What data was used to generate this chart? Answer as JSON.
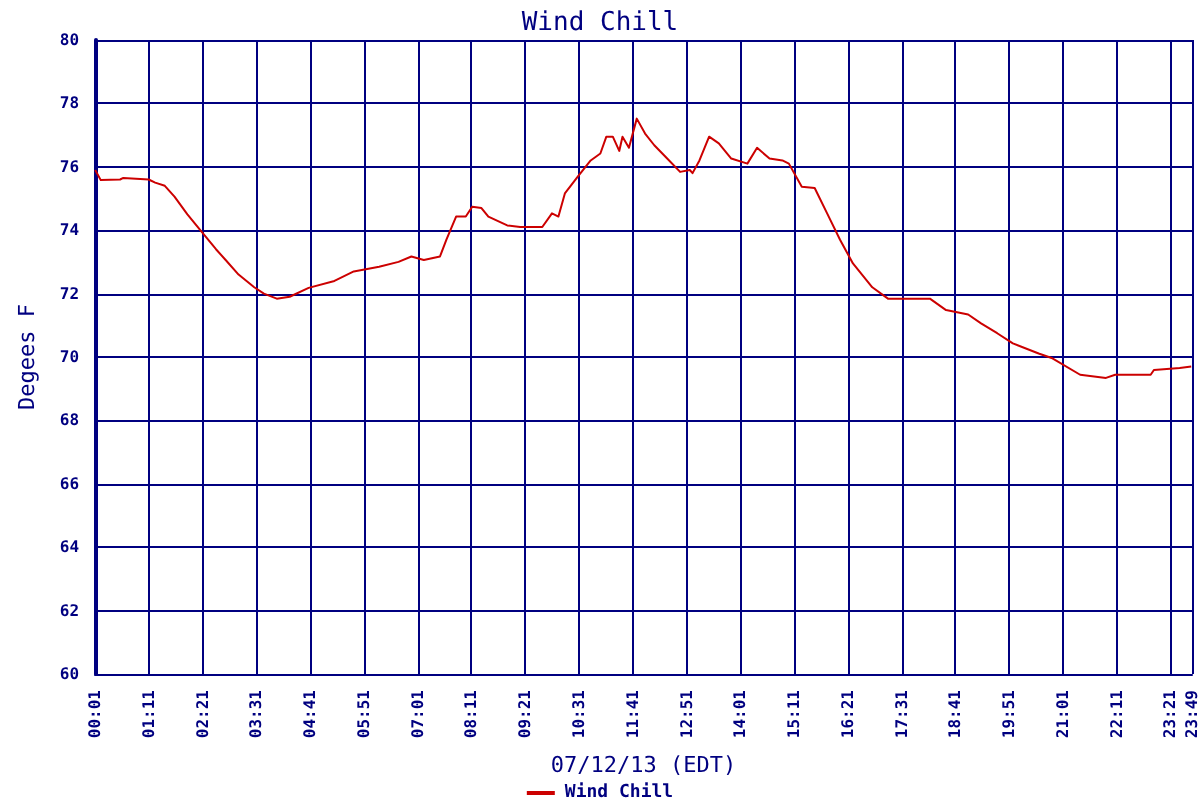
{
  "chart_data": {
    "type": "line",
    "title": "Wind Chill",
    "xlabel": "07/12/13 (EDT)",
    "ylabel": "Degees F",
    "xlim": [
      0.0167,
      23.8167
    ],
    "ylim": [
      60,
      80
    ],
    "xticks": [
      {
        "value": 0.0167,
        "label": "00:01"
      },
      {
        "value": 1.1833,
        "label": "01:11"
      },
      {
        "value": 2.35,
        "label": "02:21"
      },
      {
        "value": 3.5167,
        "label": "03:31"
      },
      {
        "value": 4.6833,
        "label": "04:41"
      },
      {
        "value": 5.85,
        "label": "05:51"
      },
      {
        "value": 7.0167,
        "label": "07:01"
      },
      {
        "value": 8.1833,
        "label": "08:11"
      },
      {
        "value": 9.35,
        "label": "09:21"
      },
      {
        "value": 10.5167,
        "label": "10:31"
      },
      {
        "value": 11.6833,
        "label": "11:41"
      },
      {
        "value": 12.85,
        "label": "12:51"
      },
      {
        "value": 14.0167,
        "label": "14:01"
      },
      {
        "value": 15.1833,
        "label": "15:11"
      },
      {
        "value": 16.35,
        "label": "16:21"
      },
      {
        "value": 17.5167,
        "label": "17:31"
      },
      {
        "value": 18.6833,
        "label": "18:41"
      },
      {
        "value": 19.85,
        "label": "19:51"
      },
      {
        "value": 21.0167,
        "label": "21:01"
      },
      {
        "value": 22.1833,
        "label": "22:11"
      },
      {
        "value": 23.35,
        "label": "23:21"
      },
      {
        "value": 23.8167,
        "label": "23:49"
      }
    ],
    "yticks": [
      60,
      62,
      64,
      66,
      68,
      70,
      72,
      74,
      76,
      78,
      80
    ],
    "grid": true,
    "legend": "bottom",
    "marker": "none",
    "line_style": "solid",
    "series": [
      {
        "name": "Wind Chill",
        "color": "#cc0000",
        "x": [
          0.02,
          0.14,
          0.56,
          0.63,
          1.18,
          1.32,
          1.53,
          1.74,
          2.02,
          2.3,
          2.64,
          2.85,
          3.13,
          3.47,
          3.68,
          3.96,
          4.24,
          4.65,
          5.21,
          5.63,
          6.18,
          6.6,
          6.88,
          7.15,
          7.5,
          7.64,
          7.85,
          8.06,
          8.2,
          8.4,
          8.55,
          8.96,
          9.24,
          9.72,
          9.93,
          10.07,
          10.21,
          10.49,
          10.77,
          10.98,
          11.11,
          11.25,
          11.39,
          11.46,
          11.6,
          11.77,
          11.95,
          12.15,
          12.43,
          12.71,
          12.92,
          12.98,
          13.13,
          13.34,
          13.55,
          13.82,
          14.17,
          14.38,
          14.65,
          14.93,
          15.07,
          15.35,
          15.63,
          15.9,
          16.18,
          16.46,
          16.88,
          17.22,
          18.13,
          18.48,
          18.96,
          19.24,
          19.59,
          19.93,
          20.49,
          20.77,
          21.39,
          21.95,
          22.15,
          22.92,
          22.99,
          23.55,
          23.8
        ],
        "values": [
          75.9,
          75.58,
          75.6,
          75.65,
          75.6,
          75.5,
          75.4,
          75.06,
          74.5,
          74.0,
          73.4,
          73.06,
          72.6,
          72.2,
          72.0,
          71.84,
          71.9,
          72.18,
          72.4,
          72.7,
          72.85,
          73.0,
          73.17,
          73.06,
          73.17,
          73.7,
          74.43,
          74.43,
          74.74,
          74.7,
          74.43,
          74.15,
          74.1,
          74.1,
          74.53,
          74.43,
          75.16,
          75.69,
          76.2,
          76.42,
          76.95,
          76.95,
          76.5,
          76.95,
          76.6,
          77.52,
          77.05,
          76.68,
          76.26,
          75.84,
          75.9,
          75.8,
          76.2,
          76.95,
          76.74,
          76.26,
          76.1,
          76.6,
          76.26,
          76.2,
          76.1,
          75.37,
          75.33,
          74.53,
          73.7,
          72.95,
          72.2,
          71.84,
          71.84,
          71.48,
          71.34,
          71.06,
          70.75,
          70.43,
          70.11,
          69.97,
          69.44,
          69.34,
          69.44,
          69.44,
          69.59,
          69.65,
          69.7
        ]
      }
    ]
  }
}
